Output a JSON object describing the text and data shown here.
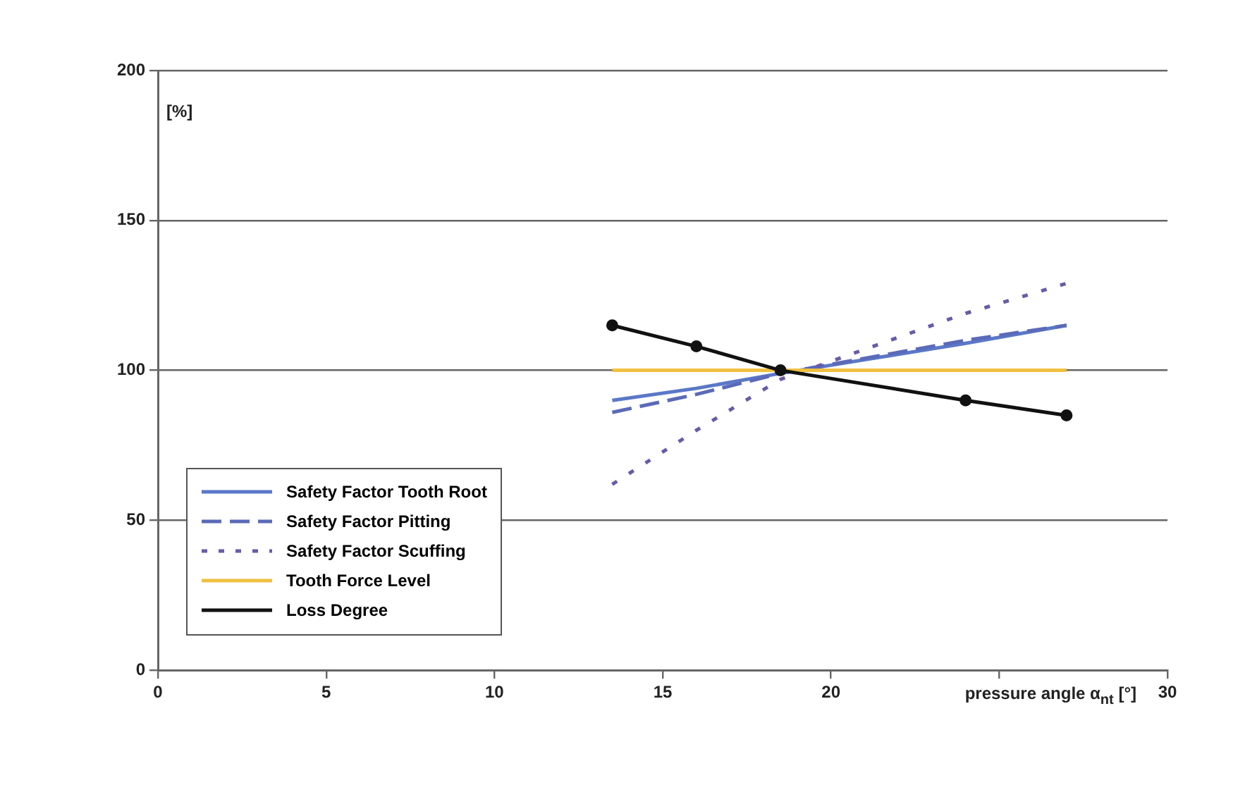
{
  "chart_data": {
    "type": "line",
    "xlabel": "pressure angle α$_{nt}$ [°]",
    "ylabel": "[%]",
    "xlim": [
      0,
      30
    ],
    "xticks": [
      0,
      5,
      10,
      15,
      20,
      {
        "value": 25,
        "label": null
      },
      30
    ],
    "ylim": [
      0,
      200
    ],
    "yticks": [
      0,
      50,
      100,
      150,
      200
    ],
    "grid": "y",
    "legend": "bottom left",
    "series": [
      {
        "name": "Safety Factor Tooth Root",
        "color": "#5b78c8",
        "line_style": "solid",
        "x": [
          13.5,
          16,
          18.5,
          24,
          27
        ],
        "values": [
          90,
          94,
          99,
          109,
          115
        ]
      },
      {
        "name": "Safety Factor Pitting",
        "color": "#5b6ab8",
        "line_style": "dashed",
        "x": [
          13.5,
          16,
          18.5,
          24,
          27
        ],
        "values": [
          86,
          92,
          99,
          110,
          115
        ]
      },
      {
        "name": "Safety Factor Scuffing",
        "color": "#6a5aa8",
        "line_style": "dotted",
        "x": [
          13.5,
          16,
          18.5,
          24,
          27
        ],
        "values": [
          62,
          80,
          97,
          119,
          129
        ]
      },
      {
        "name": "Tooth Force Level",
        "color": "#f0c040",
        "line_style": "solid",
        "x": [
          13.5,
          27
        ],
        "values": [
          100,
          100
        ]
      },
      {
        "name": "Loss Degree",
        "color": "#111111",
        "line_style": "solid",
        "marker": "circle",
        "x": [
          13.5,
          16,
          18.5,
          24,
          27
        ],
        "values": [
          115,
          108,
          100,
          90,
          85
        ]
      }
    ]
  }
}
